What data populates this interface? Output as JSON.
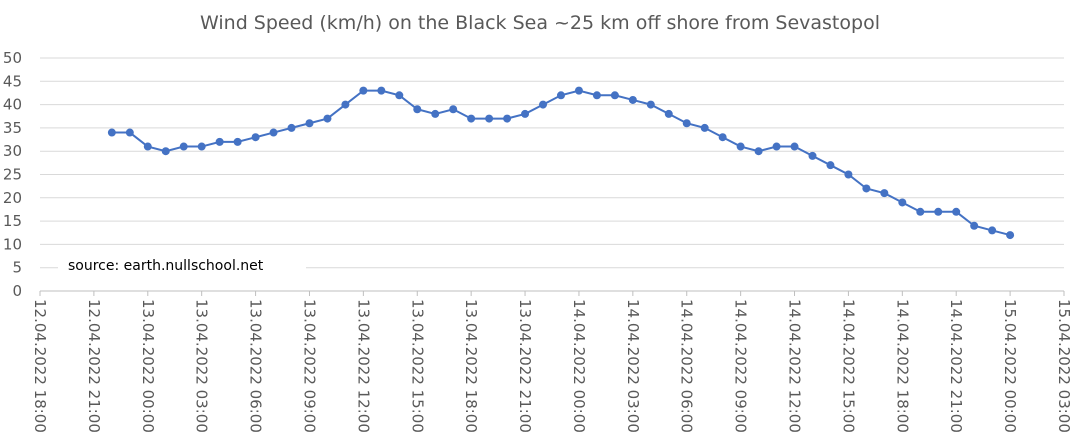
{
  "chart_data": {
    "type": "line",
    "title": "Wind Speed (km/h) on the Black Sea ~25 km off shore from Sevastopol",
    "annotation": "source: earth.nullschool.net",
    "xlabel": "",
    "ylabel": "",
    "ylim": [
      0,
      50
    ],
    "yticks": [
      "0",
      "5",
      "10",
      "15",
      "20",
      "25",
      "30",
      "35",
      "40",
      "45",
      "50"
    ],
    "xticks": [
      "12.04.2022 18:00",
      "12.04.2022 21:00",
      "13.04.2022 00:00",
      "13.04.2022 03:00",
      "13.04.2022 06:00",
      "13.04.2022 09:00",
      "13.04.2022 12:00",
      "13.04.2022 15:00",
      "13.04.2022 18:00",
      "13.04.2022 21:00",
      "14.04.2022 00:00",
      "14.04.2022 03:00",
      "14.04.2022 06:00",
      "14.04.2022 09:00",
      "14.04.2022 12:00",
      "14.04.2022 15:00",
      "14.04.2022 18:00",
      "14.04.2022 21:00",
      "15.04.2022 00:00",
      "15.04.2022 03:00"
    ],
    "grid": true,
    "line_color": "#4472c4",
    "series": [
      {
        "x": [
          "12.04.2022 22:00",
          "12.04.2022 23:00",
          "13.04.2022 00:00",
          "13.04.2022 01:00",
          "13.04.2022 02:00",
          "13.04.2022 03:00",
          "13.04.2022 04:00",
          "13.04.2022 05:00",
          "13.04.2022 06:00",
          "13.04.2022 07:00",
          "13.04.2022 08:00",
          "13.04.2022 09:00",
          "13.04.2022 10:00",
          "13.04.2022 11:00",
          "13.04.2022 12:00",
          "13.04.2022 13:00",
          "13.04.2022 14:00",
          "13.04.2022 15:00",
          "13.04.2022 16:00",
          "13.04.2022 17:00",
          "13.04.2022 18:00",
          "13.04.2022 19:00",
          "13.04.2022 20:00",
          "13.04.2022 21:00",
          "13.04.2022 22:00",
          "13.04.2022 23:00",
          "14.04.2022 00:00",
          "14.04.2022 01:00",
          "14.04.2022 02:00",
          "14.04.2022 03:00",
          "14.04.2022 04:00",
          "14.04.2022 05:00",
          "14.04.2022 06:00",
          "14.04.2022 07:00",
          "14.04.2022 08:00",
          "14.04.2022 09:00",
          "14.04.2022 10:00",
          "14.04.2022 11:00",
          "14.04.2022 12:00",
          "14.04.2022 13:00",
          "14.04.2022 14:00",
          "14.04.2022 15:00",
          "14.04.2022 16:00",
          "14.04.2022 17:00",
          "14.04.2022 18:00",
          "14.04.2022 19:00",
          "14.04.2022 20:00",
          "14.04.2022 21:00",
          "14.04.2022 22:00",
          "14.04.2022 23:00",
          "15.04.2022 00:00"
        ],
        "values": [
          34,
          34,
          31,
          30,
          31,
          31,
          32,
          32,
          33,
          34,
          35,
          36,
          37,
          40,
          43,
          43,
          42,
          39,
          38,
          39,
          37,
          37,
          37,
          38,
          40,
          42,
          43,
          42,
          42,
          41,
          40,
          38,
          36,
          35,
          33,
          31,
          30,
          31,
          31,
          29,
          27,
          25,
          22,
          21,
          19,
          17,
          17,
          17,
          14,
          13,
          12
        ]
      }
    ]
  }
}
